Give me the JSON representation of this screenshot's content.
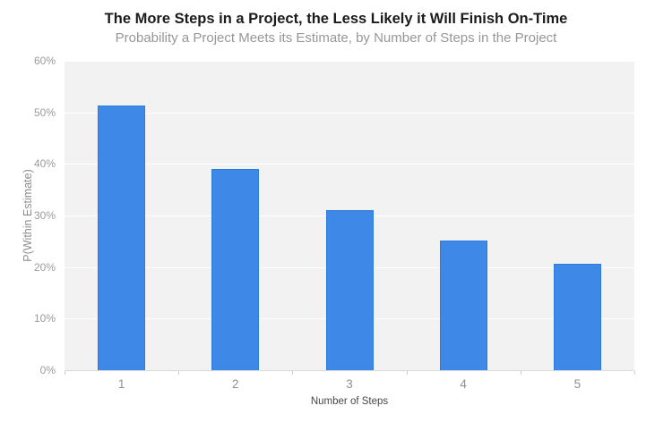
{
  "chart_data": {
    "type": "bar",
    "title": "The More Steps in a Project, the Less Likely it Will Finish On-Time",
    "subtitle": "Probability a Project Meets its Estimate, by Number of Steps in the Project",
    "xlabel": "Number of Steps",
    "ylabel": "P(Within Estimate)",
    "categories": [
      "1",
      "2",
      "3",
      "4",
      "5"
    ],
    "values": [
      51.3,
      39,
      31,
      25.1,
      20.6
    ],
    "ylim": [
      0,
      60
    ],
    "ytick_step": 10,
    "ytick_suffix": "%",
    "ytick_labels": [
      "0%",
      "10%",
      "20%",
      "30%",
      "40%",
      "50%",
      "60%"
    ],
    "grid": true,
    "legend_position": "none",
    "colors": {
      "bar_fill": "#3E88E8",
      "bar_border": "#2D7CDC",
      "panel_bg": "#F2F2F2",
      "gridline": "#FFFFFF",
      "axis_line": "#DBDBDB",
      "tick_text": "#9A9A9A"
    }
  }
}
